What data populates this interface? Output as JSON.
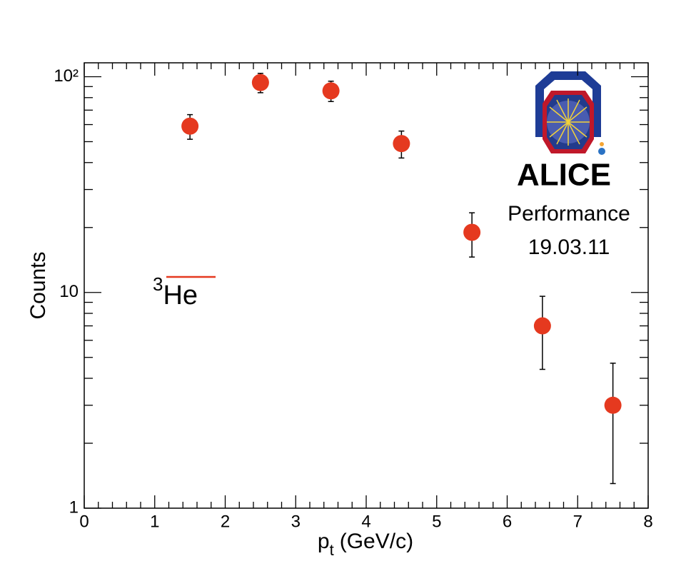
{
  "chart_data": {
    "type": "scatter",
    "x_label": "p",
    "x_label_sub": "t",
    "x_label_rest": "(GeV/c)",
    "y_label": "Counts",
    "log_y": true,
    "xlim": [
      0,
      8
    ],
    "xticks": [
      0,
      1,
      2,
      3,
      4,
      5,
      6,
      7,
      8
    ],
    "xminorticks": [
      0.2,
      0.4,
      0.6,
      0.8,
      1.2,
      1.4,
      1.6,
      1.8,
      2.2,
      2.4,
      2.6,
      2.8,
      3.2,
      3.4,
      3.6,
      3.8,
      4.2,
      4.4,
      4.6,
      4.8,
      5.2,
      5.4,
      5.6,
      5.8,
      6.2,
      6.4,
      6.6,
      6.8,
      7.2,
      7.4,
      7.6,
      7.8
    ],
    "ylim": [
      1,
      116
    ],
    "yticks": [
      1,
      10,
      {
        "value": 100,
        "label": "10²"
      }
    ],
    "yminorticks": [
      2,
      3,
      4,
      5,
      6,
      7,
      8,
      9,
      20,
      30,
      40,
      50,
      60,
      70,
      80,
      90
    ],
    "series": [
      {
        "color": "#e5391f",
        "x": [
          1.5,
          2.5,
          3.5,
          4.5,
          5.5,
          6.5,
          7.5
        ],
        "values": [
          59,
          94,
          86,
          49,
          19,
          7,
          3
        ],
        "errors": [
          7.7,
          9.7,
          9.3,
          7,
          4.4,
          2.6,
          1.7
        ]
      }
    ],
    "annotations": {
      "particle_sup": "3",
      "particle": "He",
      "particle_color": "#e5391f",
      "logo": "ALICE",
      "logo_color": "#f5a533",
      "performance": "Performance",
      "date": "19.03.11",
      "performance_color": "#5a9e2c"
    }
  }
}
